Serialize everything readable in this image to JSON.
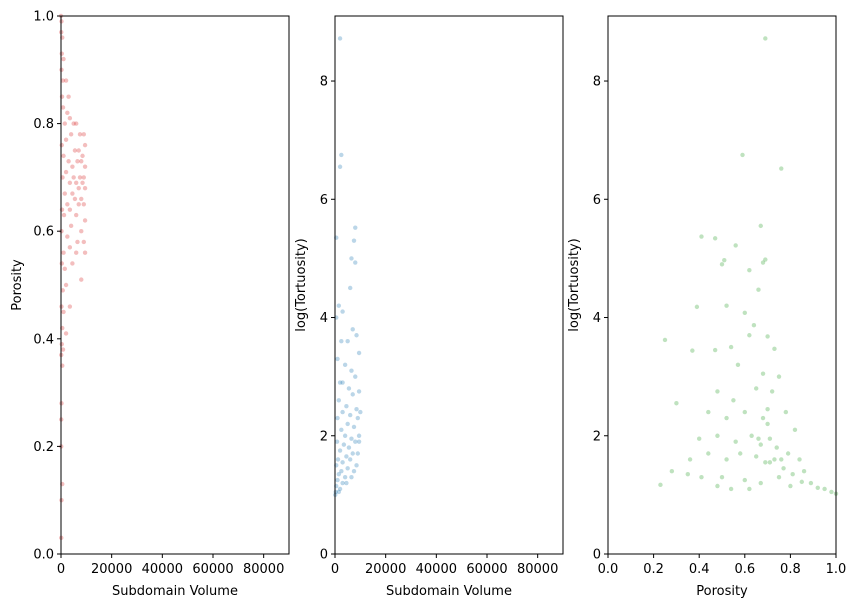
{
  "chart_data": [
    {
      "type": "scatter",
      "xlabel": "Subdomain Volume",
      "ylabel": "Porosity",
      "xlim": [
        0,
        90000
      ],
      "ylim": [
        0,
        1
      ],
      "xticks": [
        0,
        20000,
        40000,
        60000,
        80000
      ],
      "xtick_labels": [
        "0",
        "20000",
        "40000",
        "60000",
        "80000"
      ],
      "yticks": [
        0,
        0.2,
        0.4,
        0.6,
        0.8,
        1.0
      ],
      "ytick_labels": [
        "0.0",
        "0.2",
        "0.4",
        "0.6",
        "0.8",
        "1.0"
      ],
      "color": "#d62728",
      "alpha": 0.3,
      "grid": false,
      "points": [
        [
          0,
          1.0
        ],
        [
          200,
          0.99
        ],
        [
          100,
          0.97
        ],
        [
          500,
          0.96
        ],
        [
          300,
          0.93
        ],
        [
          1000,
          0.92
        ],
        [
          200,
          0.9
        ],
        [
          700,
          0.88
        ],
        [
          2000,
          0.88
        ],
        [
          400,
          0.85
        ],
        [
          3000,
          0.85
        ],
        [
          800,
          0.83
        ],
        [
          2500,
          0.82
        ],
        [
          3500,
          0.81
        ],
        [
          1500,
          0.8
        ],
        [
          5000,
          0.8
        ],
        [
          6000,
          0.8
        ],
        [
          7500,
          0.78
        ],
        [
          9000,
          0.78
        ],
        [
          4000,
          0.78
        ],
        [
          2000,
          0.77
        ],
        [
          9500,
          0.76
        ],
        [
          300,
          0.76
        ],
        [
          5500,
          0.75
        ],
        [
          7000,
          0.75
        ],
        [
          8500,
          0.74
        ],
        [
          1000,
          0.74
        ],
        [
          3000,
          0.73
        ],
        [
          6500,
          0.73
        ],
        [
          8000,
          0.73
        ],
        [
          9500,
          0.72
        ],
        [
          4500,
          0.72
        ],
        [
          2000,
          0.71
        ],
        [
          7500,
          0.7
        ],
        [
          5000,
          0.7
        ],
        [
          9000,
          0.7
        ],
        [
          600,
          0.7
        ],
        [
          3500,
          0.69
        ],
        [
          6000,
          0.69
        ],
        [
          8500,
          0.69
        ],
        [
          7000,
          0.68
        ],
        [
          9500,
          0.68
        ],
        [
          1500,
          0.67
        ],
        [
          4500,
          0.67
        ],
        [
          5500,
          0.66
        ],
        [
          8000,
          0.66
        ],
        [
          2500,
          0.65
        ],
        [
          7000,
          0.65
        ],
        [
          9000,
          0.65
        ],
        [
          400,
          0.64
        ],
        [
          3500,
          0.64
        ],
        [
          6000,
          0.63
        ],
        [
          1200,
          0.63
        ],
        [
          9500,
          0.62
        ],
        [
          4000,
          0.61
        ],
        [
          8000,
          0.6
        ],
        [
          200,
          0.6
        ],
        [
          2500,
          0.59
        ],
        [
          6500,
          0.58
        ],
        [
          9000,
          0.58
        ],
        [
          3500,
          0.57
        ],
        [
          1000,
          0.56
        ],
        [
          9500,
          0.56
        ],
        [
          6000,
          0.56
        ],
        [
          4500,
          0.54
        ],
        [
          300,
          0.54
        ],
        [
          1500,
          0.53
        ],
        [
          8000,
          0.51
        ],
        [
          2000,
          0.5
        ],
        [
          700,
          0.49
        ],
        [
          3500,
          0.46
        ],
        [
          200,
          0.46
        ],
        [
          1000,
          0.45
        ],
        [
          500,
          0.42
        ],
        [
          2000,
          0.41
        ],
        [
          300,
          0.39
        ],
        [
          800,
          0.38
        ],
        [
          100,
          0.37
        ],
        [
          500,
          0.35
        ],
        [
          200,
          0.28
        ],
        [
          100,
          0.25
        ],
        [
          100,
          0.2
        ],
        [
          500,
          0.13
        ],
        [
          200,
          0.1
        ],
        [
          100,
          0.03
        ]
      ]
    },
    {
      "type": "scatter",
      "xlabel": "Subdomain Volume",
      "ylabel": "log(Tortuosity)",
      "xlim": [
        0,
        90000
      ],
      "ylim": [
        0,
        9.1
      ],
      "xticks": [
        0,
        20000,
        40000,
        60000,
        80000
      ],
      "xtick_labels": [
        "0",
        "20000",
        "40000",
        "60000",
        "80000"
      ],
      "yticks": [
        0,
        2,
        4,
        6,
        8
      ],
      "ytick_labels": [
        "0",
        "2",
        "4",
        "6",
        "8"
      ],
      "color": "#1f77b4",
      "alpha": 0.3,
      "grid": false,
      "points": [
        [
          2000,
          8.72
        ],
        [
          2500,
          6.75
        ],
        [
          2000,
          6.55
        ],
        [
          8000,
          5.52
        ],
        [
          7500,
          5.3
        ],
        [
          500,
          5.35
        ],
        [
          6500,
          5.0
        ],
        [
          8000,
          4.93
        ],
        [
          6000,
          4.5
        ],
        [
          1500,
          4.2
        ],
        [
          3000,
          4.1
        ],
        [
          500,
          4.0
        ],
        [
          7000,
          3.8
        ],
        [
          8500,
          3.7
        ],
        [
          2500,
          3.6
        ],
        [
          5000,
          3.6
        ],
        [
          9500,
          3.4
        ],
        [
          1000,
          3.3
        ],
        [
          4000,
          3.2
        ],
        [
          6500,
          3.1
        ],
        [
          8000,
          3.0
        ],
        [
          2000,
          2.9
        ],
        [
          3000,
          2.9
        ],
        [
          5500,
          2.8
        ],
        [
          9500,
          2.75
        ],
        [
          7000,
          2.7
        ],
        [
          1500,
          2.6
        ],
        [
          4500,
          2.5
        ],
        [
          8500,
          2.45
        ],
        [
          3000,
          2.4
        ],
        [
          6000,
          2.35
        ],
        [
          9000,
          2.3
        ],
        [
          1000,
          2.3
        ],
        [
          5000,
          2.2
        ],
        [
          7500,
          2.15
        ],
        [
          2500,
          2.1
        ],
        [
          9500,
          2.0
        ],
        [
          4000,
          2.0
        ],
        [
          6500,
          1.95
        ],
        [
          800,
          1.9
        ],
        [
          8000,
          1.9
        ],
        [
          3500,
          1.85
        ],
        [
          5500,
          1.8
        ],
        [
          2000,
          1.75
        ],
        [
          9000,
          1.7
        ],
        [
          7000,
          1.7
        ],
        [
          4500,
          1.65
        ],
        [
          1200,
          1.6
        ],
        [
          6000,
          1.6
        ],
        [
          3000,
          1.55
        ],
        [
          8500,
          1.5
        ],
        [
          500,
          1.5
        ],
        [
          5000,
          1.45
        ],
        [
          2500,
          1.4
        ],
        [
          7500,
          1.4
        ],
        [
          1500,
          1.35
        ],
        [
          4000,
          1.3
        ],
        [
          6500,
          1.3
        ],
        [
          1000,
          1.25
        ],
        [
          3000,
          1.2
        ],
        [
          500,
          1.15
        ],
        [
          2000,
          1.1
        ],
        [
          300,
          1.05
        ],
        [
          100,
          1.0
        ],
        [
          1500,
          1.05
        ],
        [
          4500,
          1.2
        ],
        [
          9500,
          1.9
        ],
        [
          10000,
          2.4
        ]
      ]
    },
    {
      "type": "scatter",
      "xlabel": "Porosity",
      "ylabel": "log(Tortuosity)",
      "xlim": [
        0,
        1
      ],
      "ylim": [
        0,
        9.1
      ],
      "xticks": [
        0,
        0.2,
        0.4,
        0.6,
        0.8,
        1.0
      ],
      "xtick_labels": [
        "0.0",
        "0.2",
        "0.4",
        "0.6",
        "0.8",
        "1.0"
      ],
      "yticks": [
        0,
        2,
        4,
        6,
        8
      ],
      "ytick_labels": [
        "0",
        "2",
        "4",
        "6",
        "8"
      ],
      "color": "#2ca02c",
      "alpha": 0.3,
      "grid": false,
      "points": [
        [
          0.69,
          8.72
        ],
        [
          0.59,
          6.75
        ],
        [
          0.76,
          6.52
        ],
        [
          0.67,
          5.55
        ],
        [
          0.41,
          5.37
        ],
        [
          0.47,
          5.34
        ],
        [
          0.56,
          5.22
        ],
        [
          0.51,
          4.97
        ],
        [
          0.5,
          4.9
        ],
        [
          0.69,
          4.98
        ],
        [
          0.68,
          4.93
        ],
        [
          0.62,
          4.8
        ],
        [
          0.66,
          4.47
        ],
        [
          0.39,
          4.18
        ],
        [
          0.52,
          4.2
        ],
        [
          0.6,
          4.08
        ],
        [
          0.64,
          3.87
        ],
        [
          0.25,
          3.62
        ],
        [
          0.37,
          3.44
        ],
        [
          0.73,
          3.47
        ],
        [
          0.7,
          3.68
        ],
        [
          0.62,
          3.7
        ],
        [
          0.54,
          3.5
        ],
        [
          0.47,
          3.45
        ],
        [
          0.57,
          3.2
        ],
        [
          0.68,
          3.05
        ],
        [
          0.75,
          3.0
        ],
        [
          0.3,
          2.55
        ],
        [
          0.48,
          2.75
        ],
        [
          0.55,
          2.6
        ],
        [
          0.65,
          2.8
        ],
        [
          0.72,
          2.75
        ],
        [
          0.44,
          2.4
        ],
        [
          0.52,
          2.3
        ],
        [
          0.6,
          2.4
        ],
        [
          0.68,
          2.3
        ],
        [
          0.7,
          2.2
        ],
        [
          0.78,
          2.4
        ],
        [
          0.82,
          2.1
        ],
        [
          0.4,
          1.95
        ],
        [
          0.48,
          2.0
        ],
        [
          0.56,
          1.9
        ],
        [
          0.63,
          2.0
        ],
        [
          0.67,
          1.85
        ],
        [
          0.71,
          1.95
        ],
        [
          0.74,
          1.8
        ],
        [
          0.79,
          1.7
        ],
        [
          0.84,
          1.6
        ],
        [
          0.36,
          1.6
        ],
        [
          0.44,
          1.7
        ],
        [
          0.52,
          1.6
        ],
        [
          0.58,
          1.7
        ],
        [
          0.65,
          1.65
        ],
        [
          0.69,
          1.55
        ],
        [
          0.73,
          1.6
        ],
        [
          0.77,
          1.45
        ],
        [
          0.81,
          1.35
        ],
        [
          0.86,
          1.4
        ],
        [
          0.35,
          1.35
        ],
        [
          0.41,
          1.3
        ],
        [
          0.5,
          1.3
        ],
        [
          0.6,
          1.25
        ],
        [
          0.67,
          1.2
        ],
        [
          0.75,
          1.3
        ],
        [
          0.8,
          1.15
        ],
        [
          0.85,
          1.22
        ],
        [
          0.89,
          1.2
        ],
        [
          0.92,
          1.12
        ],
        [
          0.95,
          1.1
        ],
        [
          0.98,
          1.05
        ],
        [
          1.0,
          1.02
        ],
        [
          0.23,
          1.17
        ],
        [
          0.28,
          1.4
        ],
        [
          0.48,
          1.15
        ],
        [
          0.54,
          1.1
        ],
        [
          0.62,
          1.1
        ],
        [
          0.71,
          1.55
        ],
        [
          0.76,
          1.6
        ],
        [
          0.66,
          1.95
        ],
        [
          0.7,
          2.45
        ]
      ]
    }
  ]
}
